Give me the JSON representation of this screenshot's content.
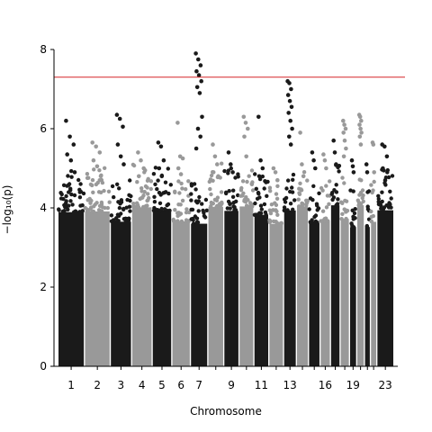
{
  "chart_data": {
    "type": "scatter",
    "subtype": "manhattan",
    "xlabel": "Chromosome",
    "ylabel": "−log₁₀(p)",
    "ylim": [
      0,
      8
    ],
    "yticks": [
      0,
      2,
      4,
      6,
      8
    ],
    "grid": false,
    "legend": "none",
    "significance_threshold": 7.3,
    "threshold_color": "#d62728",
    "colors": {
      "odd": "#1a1a1a",
      "even": "#999999"
    },
    "xtick_labels": [
      "1",
      "2",
      "3",
      "4",
      "5",
      "6",
      "7",
      "9",
      "11",
      "13",
      "16",
      "19",
      "23"
    ],
    "chromosomes": [
      {
        "chr": "1",
        "len": 24.9,
        "tops": [
          6.2,
          5.8,
          5.6,
          5.35,
          5.2,
          4.9
        ]
      },
      {
        "chr": "2",
        "len": 24.2,
        "tops": [
          5.65,
          5.55,
          5.4,
          5.2,
          5.05,
          4.8
        ]
      },
      {
        "chr": "3",
        "len": 19.8,
        "tops": [
          6.35,
          6.25,
          6.05,
          5.6,
          5.3,
          5.1
        ]
      },
      {
        "chr": "4",
        "len": 19.0,
        "tops": [
          5.4,
          5.2,
          5.0,
          4.8
        ]
      },
      {
        "chr": "5",
        "len": 18.1,
        "tops": [
          5.65,
          5.55,
          5.2,
          5.0,
          4.8
        ]
      },
      {
        "chr": "6",
        "len": 17.1,
        "tops": [
          6.15,
          5.3,
          5.25,
          5.0,
          4.85
        ]
      },
      {
        "chr": "7",
        "len": 15.9,
        "tops": [
          7.9,
          7.75,
          7.6,
          7.45,
          7.35,
          7.2,
          7.05,
          6.9,
          6.3,
          6.0,
          5.8,
          5.5
        ]
      },
      {
        "chr": "8",
        "len": 14.5,
        "tops": [
          5.6,
          5.3,
          5.1,
          4.9
        ]
      },
      {
        "chr": "9",
        "len": 13.8,
        "tops": [
          5.4,
          5.1,
          4.9
        ]
      },
      {
        "chr": "10",
        "len": 13.4,
        "tops": [
          6.3,
          6.15,
          6.0,
          5.8,
          5.3
        ]
      },
      {
        "chr": "11",
        "len": 13.5,
        "tops": [
          6.3,
          5.2,
          5.0,
          4.8
        ]
      },
      {
        "chr": "12",
        "len": 13.3,
        "tops": [
          5.0,
          4.9,
          4.7
        ]
      },
      {
        "chr": "13",
        "len": 11.4,
        "tops": [
          7.2,
          7.15,
          7.0,
          6.85,
          6.7,
          6.55,
          6.4,
          6.2,
          6.0,
          5.8,
          5.6
        ]
      },
      {
        "chr": "14",
        "len": 10.7,
        "tops": [
          5.9,
          5.1,
          4.8
        ]
      },
      {
        "chr": "15",
        "len": 10.2,
        "tops": [
          5.4,
          5.2,
          5.0
        ]
      },
      {
        "chr": "16",
        "len": 9.0,
        "tops": [
          5.35,
          5.2,
          5.0
        ]
      },
      {
        "chr": "17",
        "len": 8.3,
        "tops": [
          5.7,
          5.4,
          5.1
        ]
      },
      {
        "chr": "18",
        "len": 8.0,
        "tops": [
          6.2,
          6.1,
          6.0,
          5.9,
          5.7,
          5.5,
          5.3
        ]
      },
      {
        "chr": "19",
        "len": 5.9,
        "tops": [
          5.2,
          5.05,
          4.9
        ]
      },
      {
        "chr": "20",
        "len": 6.4,
        "tops": [
          6.35,
          6.3,
          6.2,
          6.1,
          6.0,
          5.9,
          5.8,
          5.6
        ]
      },
      {
        "chr": "21",
        "len": 4.7,
        "tops": [
          5.1,
          4.9
        ]
      },
      {
        "chr": "22",
        "len": 5.1,
        "tops": [
          5.65,
          5.6,
          4.9
        ]
      },
      {
        "chr": "23",
        "len": 15.6,
        "tops": [
          5.6,
          5.55,
          5.3,
          5.0,
          4.7
        ]
      }
    ]
  }
}
